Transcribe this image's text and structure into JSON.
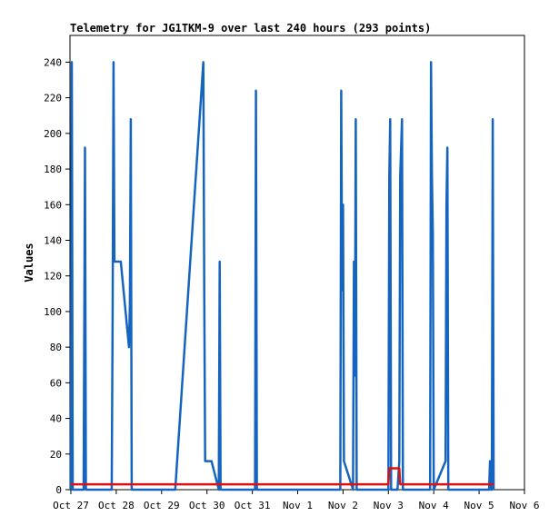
{
  "chart_data": {
    "type": "line",
    "title": "Telemetry for JG1TKM-9 over last 240 hours (293 points)",
    "xlabel": "",
    "ylabel": "Values",
    "x_tick_labels": [
      "Oct 27",
      "Oct 28",
      "Oct 29",
      "Oct 30",
      "Oct 31",
      "Nov 1",
      "Nov 2",
      "Nov 3",
      "Nov 4",
      "Nov 5",
      "Nov 6"
    ],
    "xlim_days": [
      0,
      10
    ],
    "ylim": [
      0,
      255
    ],
    "y_ticks": [
      0,
      20,
      40,
      60,
      80,
      100,
      120,
      140,
      160,
      180,
      200,
      220,
      240
    ],
    "grid": false,
    "series": [
      {
        "color": "#1565c0",
        "points": [
          [
            0.0,
            0
          ],
          [
            0.02,
            240
          ],
          [
            0.04,
            0
          ],
          [
            0.28,
            0
          ],
          [
            0.31,
            192
          ],
          [
            0.33,
            0
          ],
          [
            0.9,
            0
          ],
          [
            0.92,
            96
          ],
          [
            0.94,
            240
          ],
          [
            0.96,
            128
          ],
          [
            1.1,
            128
          ],
          [
            1.28,
            80
          ],
          [
            1.3,
            104
          ],
          [
            1.32,
            208
          ],
          [
            1.34,
            0
          ],
          [
            2.3,
            0
          ],
          [
            2.92,
            240
          ],
          [
            2.94,
            112
          ],
          [
            2.96,
            16
          ],
          [
            3.1,
            16
          ],
          [
            3.26,
            0
          ],
          [
            3.28,
            128
          ],
          [
            3.3,
            0
          ],
          [
            4.06,
            0
          ],
          [
            4.08,
            224
          ],
          [
            4.1,
            0
          ],
          [
            5.94,
            0
          ],
          [
            5.96,
            224
          ],
          [
            5.98,
            112
          ],
          [
            6.0,
            160
          ],
          [
            6.02,
            16
          ],
          [
            6.22,
            0
          ],
          [
            6.24,
            128
          ],
          [
            6.26,
            64
          ],
          [
            6.28,
            208
          ],
          [
            6.3,
            0
          ],
          [
            7.0,
            0
          ],
          [
            7.02,
            176
          ],
          [
            7.04,
            208
          ],
          [
            7.06,
            0
          ],
          [
            7.2,
            0
          ],
          [
            7.24,
            16
          ],
          [
            7.26,
            176
          ],
          [
            7.28,
            192
          ],
          [
            7.3,
            208
          ],
          [
            7.32,
            0
          ],
          [
            7.92,
            0
          ],
          [
            7.94,
            240
          ],
          [
            7.96,
            176
          ],
          [
            7.98,
            144
          ],
          [
            8.0,
            0
          ],
          [
            8.26,
            16
          ],
          [
            8.28,
            160
          ],
          [
            8.3,
            192
          ],
          [
            8.32,
            0
          ],
          [
            9.22,
            0
          ],
          [
            9.24,
            16
          ],
          [
            9.26,
            0
          ],
          [
            9.28,
            0
          ],
          [
            9.3,
            208
          ],
          [
            9.32,
            0
          ]
        ]
      },
      {
        "color": "#e01010",
        "points": [
          [
            0.0,
            3
          ],
          [
            7.0,
            3
          ],
          [
            7.02,
            12
          ],
          [
            7.24,
            12
          ],
          [
            7.26,
            3
          ],
          [
            9.32,
            3
          ]
        ]
      }
    ]
  }
}
